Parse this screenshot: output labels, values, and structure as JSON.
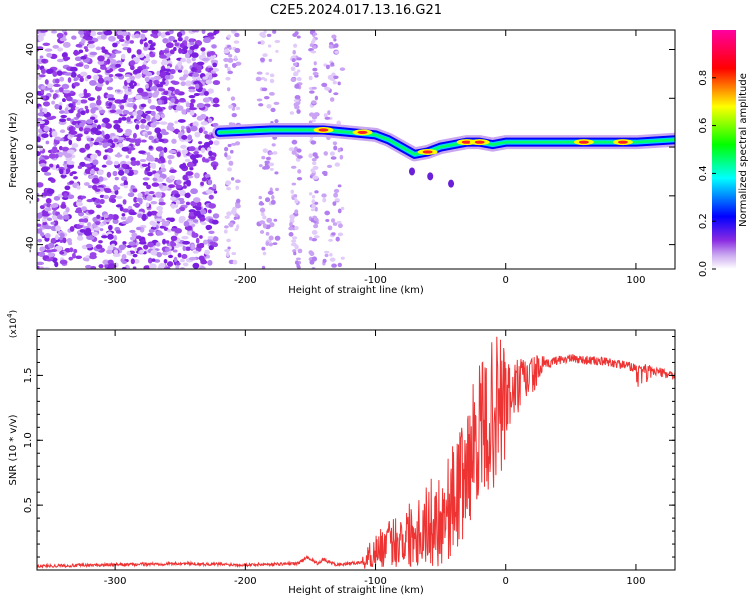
{
  "title": "C2E5.2024.017.13.16.G21",
  "chart_data": [
    {
      "type": "heatmap",
      "xlabel": "Height of straight line (km)",
      "ylabel": "Frequency (Hz)",
      "xlim": [
        -360,
        130
      ],
      "ylim": [
        -50,
        48
      ],
      "xticks": [
        -300,
        -200,
        -100,
        0,
        100
      ],
      "yticks": [
        -40,
        -20,
        0,
        20,
        40
      ],
      "colorbar": {
        "label": "Normalized spectral amplitude",
        "range": [
          0,
          1
        ],
        "ticks": [
          "0.0",
          "0.2",
          "0.4",
          "0.6",
          "0.8"
        ],
        "colors": [
          "#ffffff",
          "#8a2be2",
          "#0000ff",
          "#00ffff",
          "#00ff00",
          "#ffff00",
          "#ff0000",
          "#ff00a0"
        ]
      },
      "track": {
        "x": [
          -220,
          -180,
          -140,
          -120,
          -100,
          -90,
          -80,
          -70,
          -60,
          -50,
          -40,
          -30,
          -20,
          -10,
          0,
          20,
          40,
          60,
          80,
          100,
          130
        ],
        "y": [
          6,
          7,
          7,
          6,
          5,
          3,
          0,
          -3,
          -2,
          0,
          1,
          2,
          2,
          1,
          2,
          2,
          2,
          2,
          2,
          2,
          3
        ]
      }
    },
    {
      "type": "line",
      "xlabel": "Height of straight line (km)",
      "ylabel": "SNR (10 * v/v)",
      "scale_label": "(x10",
      "scale_exp": "4",
      "xlim": [
        -360,
        130
      ],
      "ylim": [
        0,
        1.85
      ],
      "xticks": [
        -300,
        -200,
        -100,
        0,
        100
      ],
      "yticks": [
        "0.5",
        "1.0",
        "1.5"
      ],
      "series": [
        {
          "color": "#ee3333",
          "x": [
            -360,
            -300,
            -250,
            -200,
            -160,
            -152,
            -145,
            -140,
            -130,
            -120,
            -110,
            -100,
            -90,
            -80,
            -70,
            -60,
            -50,
            -40,
            -30,
            -25,
            -20,
            -17,
            -10,
            0,
            10,
            20,
            30,
            40,
            50,
            60,
            80,
            100,
            110,
            120,
            130
          ],
          "y": [
            0.03,
            0.04,
            0.05,
            0.04,
            0.05,
            0.1,
            0.05,
            0.08,
            0.04,
            0.05,
            0.06,
            0.15,
            0.2,
            0.25,
            0.3,
            0.35,
            0.4,
            0.55,
            0.75,
            0.95,
            1.1,
            1.05,
            1.2,
            1.3,
            1.42,
            1.5,
            1.58,
            1.62,
            1.63,
            1.62,
            1.6,
            1.56,
            1.55,
            1.52,
            1.5
          ]
        }
      ]
    }
  ]
}
